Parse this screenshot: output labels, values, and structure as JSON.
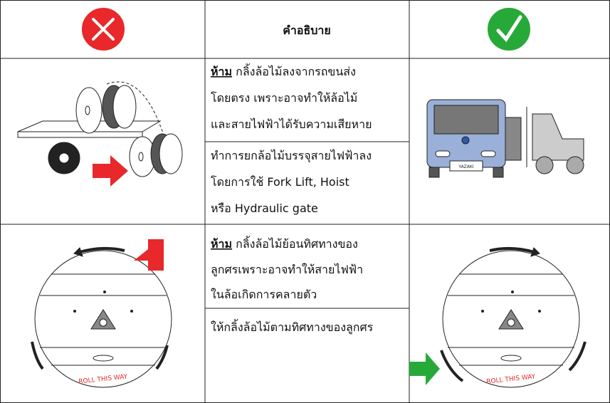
{
  "header": {
    "title": "คำอธิบาย"
  },
  "rows": [
    {
      "warning": {
        "label": "ห้าม",
        "lines": [
          " กลิ้งล้อไม้ลงจากรถขนส่ง",
          "โดยตรง เพราะอาจทำให้ล้อไม้",
          "และสายไฟฟ้าได้รับความเสียหาย"
        ]
      },
      "instruction": {
        "lines": [
          "ทำการยกล้อไม้บรรจุสายไฟฟ้าลง",
          "โดยการใช้ Fork Lift, Hoist",
          "หรือ Hydraulic gate"
        ]
      },
      "truck_label": "YAZAKI"
    },
    {
      "warning": {
        "label": "ห้าม",
        "lines": [
          " กลิ้งล้อไม้ย้อนทิศทางของ",
          "ลูกศรเพราะอาจทำให้สายไฟฟ้า",
          "ในล้อเกิดการคลายตัว"
        ]
      },
      "instruction": {
        "lines": [
          "ให้กลิ้งล้อไม้ตามทิศทางของลูกศร"
        ]
      },
      "wrong_label": "ROLL THIS WAY",
      "right_label": "ROLL THIS WAY"
    }
  ]
}
